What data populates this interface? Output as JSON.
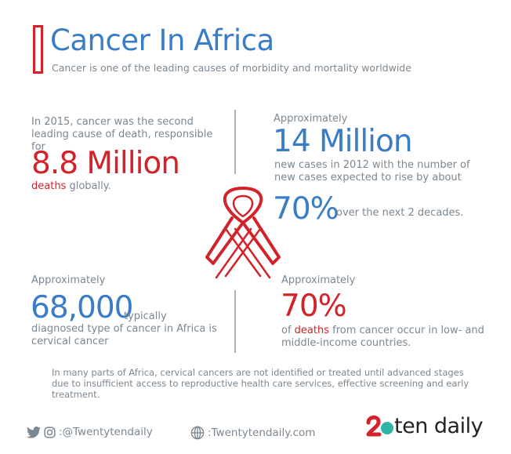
{
  "header": {
    "title": "Cancer In Africa",
    "subtitle": "Cancer is one of the leading causes of morbidity and mortality worldwide"
  },
  "stat1": {
    "text": "In 2015, cancer was the second leading cause of death, responsible for",
    "big": "8.8 Million",
    "tail_highlight": "deaths",
    "tail": " globally."
  },
  "stat2": {
    "approx": "Approximately",
    "big": "14 Million",
    "text": "new cases in 2012 with the number of new cases expected to rise by about",
    "pct": "70%",
    "pct_tail": "over the next 2 decades."
  },
  "stat3": {
    "approx": "Approximately",
    "big": "68,000",
    "typically": "typically",
    "text": "diagnosed type of cancer in Africa is cervical cancer"
  },
  "stat4": {
    "approx": "Approximately",
    "big": "70%",
    "text_pre": "of ",
    "text_highlight": "deaths",
    "text_post": " from cancer occur in low- and middle-income countries."
  },
  "footnote": "In many parts of Africa, cervical cancers are not identified or treated until advanced stages due to insufficient access to reproductive health care services, effective screening and early treatment.",
  "footer": {
    "social_handle": ":@Twentytendaily",
    "website": ":Twentytendaily.com",
    "logo_text": "ten daily"
  },
  "colors": {
    "accent_red": "#d2232a",
    "accent_blue": "#3a7cc6",
    "text_grey": "#7b8791"
  },
  "icons": [
    "twitter-icon",
    "instagram-icon",
    "globe-icon",
    "awareness-ribbon-icon",
    "twenty-logo-icon"
  ]
}
